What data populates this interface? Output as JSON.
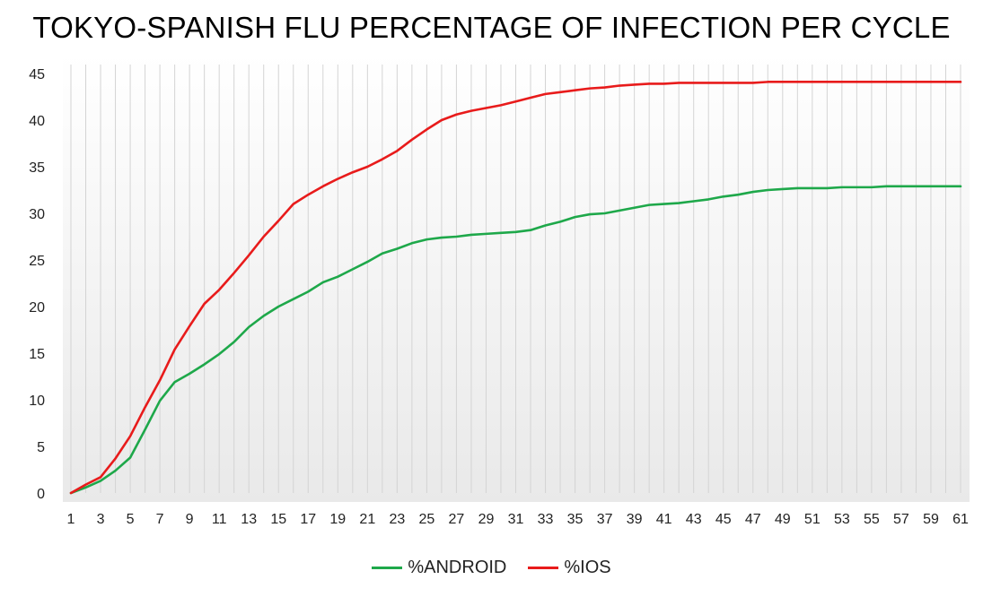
{
  "chart_data": {
    "type": "line",
    "title": "TOKYO-SPANISH FLU PERCENTAGE OF INFECTION PER CYCLE",
    "xlabel": "",
    "ylabel": "",
    "ylim": [
      0,
      45
    ],
    "yticks": [
      0,
      5,
      10,
      15,
      20,
      25,
      30,
      35,
      40,
      45
    ],
    "xticks": [
      1,
      3,
      5,
      7,
      9,
      11,
      13,
      15,
      17,
      19,
      21,
      23,
      25,
      27,
      29,
      31,
      33,
      35,
      37,
      39,
      41,
      43,
      45,
      47,
      49,
      51,
      53,
      55,
      57,
      59,
      61
    ],
    "grid": "vertical",
    "legend_position": "bottom",
    "x": [
      1,
      2,
      3,
      4,
      5,
      6,
      7,
      8,
      9,
      10,
      11,
      12,
      13,
      14,
      15,
      16,
      17,
      18,
      19,
      20,
      21,
      22,
      23,
      24,
      25,
      26,
      27,
      28,
      29,
      30,
      31,
      32,
      33,
      34,
      35,
      36,
      37,
      38,
      39,
      40,
      41,
      42,
      43,
      44,
      45,
      46,
      47,
      48,
      49,
      50,
      51,
      52,
      53,
      54,
      55,
      56,
      57,
      58,
      59,
      60,
      61
    ],
    "series": [
      {
        "name": "%ANDROID",
        "color": "#1ea84a",
        "values": [
          0.0,
          0.6,
          1.3,
          2.4,
          3.8,
          6.8,
          9.9,
          11.9,
          12.8,
          13.8,
          14.9,
          16.2,
          17.8,
          19.0,
          20.0,
          20.8,
          21.6,
          22.6,
          23.2,
          24.0,
          24.8,
          25.7,
          26.2,
          26.8,
          27.2,
          27.4,
          27.5,
          27.7,
          27.8,
          27.9,
          28.0,
          28.2,
          28.7,
          29.1,
          29.6,
          29.9,
          30.0,
          30.3,
          30.6,
          30.9,
          31.0,
          31.1,
          31.3,
          31.5,
          31.8,
          32.0,
          32.3,
          32.5,
          32.6,
          32.7,
          32.7,
          32.7,
          32.8,
          32.8,
          32.8,
          32.9,
          32.9,
          32.9,
          32.9,
          32.9,
          32.9
        ]
      },
      {
        "name": "%IOS",
        "color": "#e81b1b",
        "values": [
          0.0,
          0.9,
          1.7,
          3.7,
          6.1,
          9.2,
          12.1,
          15.4,
          17.9,
          20.3,
          21.8,
          23.6,
          25.5,
          27.5,
          29.2,
          31.0,
          32.0,
          32.9,
          33.7,
          34.4,
          35.0,
          35.8,
          36.7,
          37.9,
          39.0,
          40.0,
          40.6,
          41.0,
          41.3,
          41.6,
          42.0,
          42.4,
          42.8,
          43.0,
          43.2,
          43.4,
          43.5,
          43.7,
          43.8,
          43.9,
          43.9,
          44.0,
          44.0,
          44.0,
          44.0,
          44.0,
          44.0,
          44.1,
          44.1,
          44.1,
          44.1,
          44.1,
          44.1,
          44.1,
          44.1,
          44.1,
          44.1,
          44.1,
          44.1,
          44.1,
          44.1
        ]
      }
    ]
  }
}
